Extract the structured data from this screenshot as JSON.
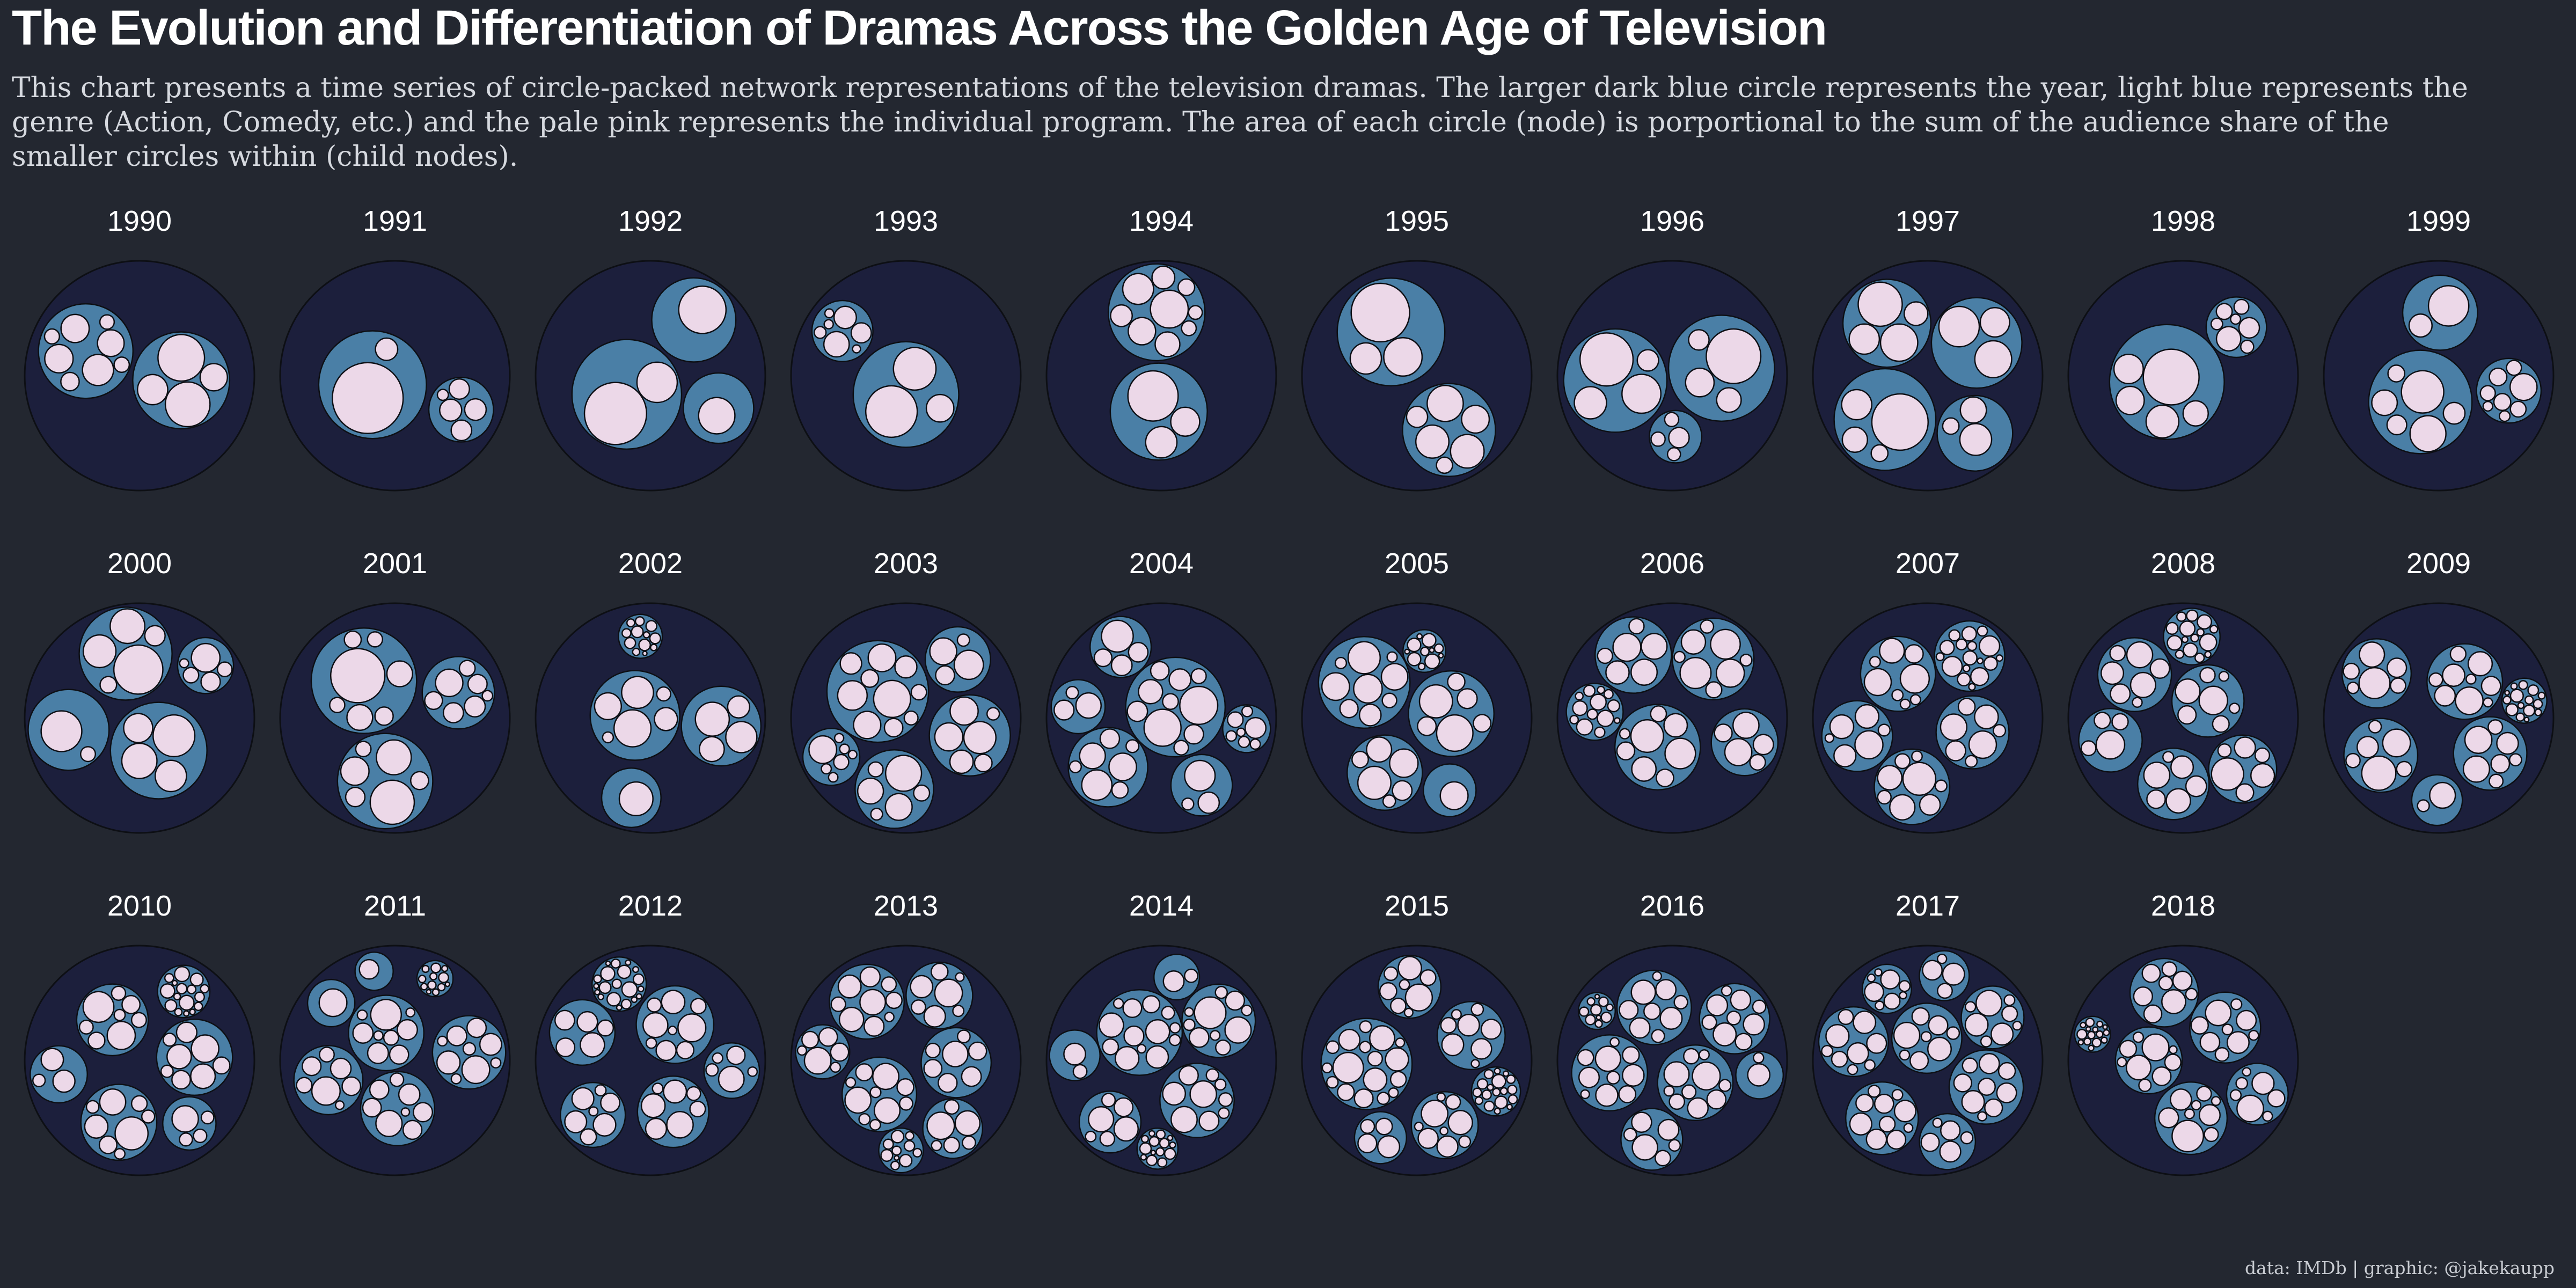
{
  "header": {
    "title": "The Evolution and Differentiation of Dramas Across the Golden Age of Television",
    "subtitle": "This chart presents a time series of circle-packed network representations of the television dramas. The larger dark blue circle represents the year, light blue represents the genre (Action, Comedy, etc.) and the pale pink represents the individual program. The area of each circle (node) is porportional to the sum of the audience share of the smaller circles within (child nodes)."
  },
  "footer": {
    "credit": "data: IMDb | graphic: @jakekaupp"
  },
  "colors": {
    "background": "#232730",
    "year_circle": "#1c1f3c",
    "genre_circle": "#4a7fa6",
    "program_circle": "#ecd8e8",
    "outline": "#0d0f14"
  },
  "chart_data": {
    "type": "circle-packing",
    "hierarchy": [
      "year",
      "genre",
      "program"
    ],
    "years": [
      {
        "year": "1990",
        "programs": 14
      },
      {
        "year": "1991",
        "programs": 10
      },
      {
        "year": "1992",
        "programs": 8
      },
      {
        "year": "1993",
        "programs": 12
      },
      {
        "year": "1994",
        "programs": 14
      },
      {
        "year": "1995",
        "programs": 11
      },
      {
        "year": "1996",
        "programs": 16
      },
      {
        "year": "1997",
        "programs": 18
      },
      {
        "year": "1998",
        "programs": 16
      },
      {
        "year": "1999",
        "programs": 22
      },
      {
        "year": "2000",
        "programs": 22
      },
      {
        "year": "2001",
        "programs": 26
      },
      {
        "year": "2002",
        "programs": 34
      },
      {
        "year": "2003",
        "programs": 38
      },
      {
        "year": "2004",
        "programs": 44
      },
      {
        "year": "2005",
        "programs": 42
      },
      {
        "year": "2006",
        "programs": 48
      },
      {
        "year": "2007",
        "programs": 56
      },
      {
        "year": "2008",
        "programs": 56
      },
      {
        "year": "2009",
        "programs": 60
      },
      {
        "year": "2010",
        "programs": 58
      },
      {
        "year": "2011",
        "programs": 66
      },
      {
        "year": "2012",
        "programs": 68
      },
      {
        "year": "2013",
        "programs": 70
      },
      {
        "year": "2014",
        "programs": 72
      },
      {
        "year": "2015",
        "programs": 76
      },
      {
        "year": "2016",
        "programs": 74
      },
      {
        "year": "2017",
        "programs": 80
      },
      {
        "year": "2018",
        "programs": 76
      }
    ]
  }
}
